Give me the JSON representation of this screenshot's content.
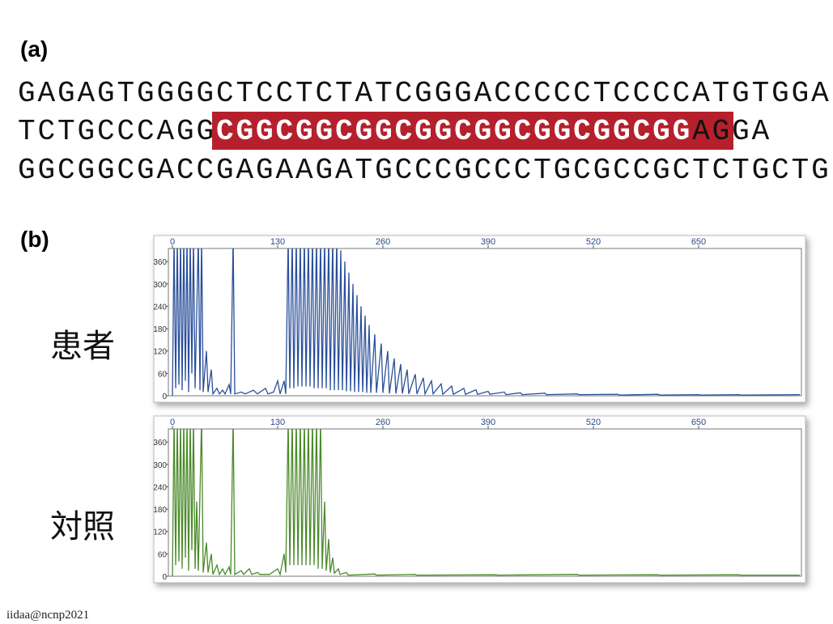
{
  "label_a": "(a)",
  "sequence": {
    "line1": "GAGAGTGGGGCTCCTCTATCGGGACCCCCTCCCCATGTGGA",
    "line2_before": "TCTGCCCAGG",
    "line2_repeat": "CGGCGGCGGCGGCGGCGGCGGCGG",
    "line2_after": "AGGA",
    "line3": "GGCGGCGACCGAGAAGATGCCCGCCCTGCGCCGCTCTGCTG"
  },
  "label_b": "(b)",
  "footer": "iidaa@ncnp2021",
  "chart_data": [
    {
      "type": "line",
      "title": "患者",
      "color": "#2a4f9a",
      "xlim": [
        -5,
        777
      ],
      "xticks": [
        0,
        130,
        260,
        390,
        520,
        650
      ],
      "ylim": [
        0,
        395
      ],
      "yticks": [
        0,
        60,
        120,
        180,
        240,
        300,
        360
      ],
      "x": [
        0,
        2,
        4,
        6,
        8,
        10,
        12,
        14,
        16,
        18,
        20,
        22,
        24,
        26,
        28,
        32,
        34,
        36,
        38,
        42,
        44,
        48,
        50,
        55,
        58,
        62,
        65,
        70,
        72,
        75,
        77,
        85,
        90,
        100,
        105,
        115,
        118,
        125,
        130,
        133,
        138,
        140,
        143,
        145,
        148,
        150,
        153,
        155,
        158,
        160,
        163,
        165,
        168,
        170,
        173,
        175,
        178,
        180,
        183,
        185,
        188,
        190,
        193,
        195,
        198,
        200,
        203,
        205,
        208,
        210,
        213,
        215,
        218,
        220,
        223,
        225,
        228,
        230,
        233,
        235,
        238,
        240,
        243,
        245,
        250,
        252,
        258,
        260,
        266,
        268,
        274,
        276,
        282,
        284,
        290,
        292,
        300,
        302,
        310,
        312,
        320,
        322,
        332,
        334,
        345,
        347,
        360,
        362,
        375,
        377,
        390,
        392,
        410,
        412,
        430,
        432,
        460,
        462,
        500,
        502,
        550,
        552,
        600,
        602,
        650,
        652,
        700,
        702,
        775
      ],
      "values": [
        0,
        425,
        20,
        425,
        30,
        425,
        15,
        425,
        40,
        425,
        10,
        425,
        60,
        425,
        20,
        425,
        15,
        425,
        10,
        120,
        10,
        70,
        5,
        20,
        5,
        15,
        5,
        30,
        5,
        425,
        5,
        10,
        5,
        15,
        5,
        20,
        5,
        10,
        40,
        5,
        40,
        5,
        425,
        20,
        425,
        20,
        425,
        25,
        425,
        25,
        425,
        25,
        425,
        25,
        425,
        20,
        425,
        20,
        425,
        20,
        425,
        20,
        425,
        15,
        425,
        15,
        425,
        15,
        390,
        15,
        360,
        12,
        330,
        12,
        300,
        10,
        270,
        10,
        240,
        10,
        215,
        8,
        190,
        8,
        165,
        8,
        140,
        8,
        120,
        6,
        100,
        6,
        85,
        6,
        70,
        5,
        58,
        5,
        48,
        5,
        40,
        5,
        32,
        4,
        26,
        4,
        20,
        4,
        16,
        4,
        12,
        4,
        10,
        3,
        8,
        3,
        7,
        3,
        5,
        3,
        4,
        2,
        4,
        2,
        3,
        2,
        3,
        2,
        3
      ]
    },
    {
      "type": "line",
      "title": "対照",
      "color": "#4a8a2a",
      "xlim": [
        -5,
        777
      ],
      "xticks": [
        0,
        130,
        260,
        390,
        520,
        650
      ],
      "ylim": [
        0,
        395
      ],
      "yticks": [
        0,
        60,
        120,
        180,
        240,
        300,
        360
      ],
      "x": [
        0,
        2,
        4,
        6,
        8,
        10,
        12,
        14,
        16,
        18,
        20,
        22,
        24,
        26,
        28,
        30,
        32,
        36,
        38,
        42,
        44,
        48,
        50,
        55,
        58,
        62,
        65,
        70,
        72,
        75,
        77,
        85,
        88,
        95,
        98,
        105,
        108,
        120,
        130,
        133,
        138,
        140,
        143,
        145,
        148,
        150,
        153,
        155,
        158,
        160,
        163,
        165,
        168,
        170,
        173,
        175,
        178,
        180,
        183,
        185,
        188,
        190,
        193,
        195,
        198,
        200,
        205,
        207,
        215,
        217,
        250,
        252,
        300,
        302,
        400,
        402,
        500,
        502,
        600,
        602,
        700,
        702,
        775
      ],
      "values": [
        0,
        425,
        30,
        425,
        40,
        425,
        20,
        425,
        50,
        425,
        15,
        425,
        70,
        425,
        20,
        200,
        15,
        425,
        10,
        90,
        10,
        60,
        5,
        30,
        5,
        20,
        5,
        25,
        5,
        425,
        5,
        15,
        5,
        20,
        5,
        10,
        5,
        5,
        20,
        5,
        60,
        10,
        425,
        30,
        425,
        30,
        425,
        30,
        425,
        30,
        425,
        30,
        425,
        30,
        425,
        30,
        425,
        20,
        425,
        20,
        200,
        15,
        100,
        10,
        50,
        8,
        20,
        5,
        10,
        3,
        6,
        3,
        5,
        3,
        4,
        3,
        5,
        3,
        4,
        3,
        4,
        3,
        3
      ]
    }
  ]
}
